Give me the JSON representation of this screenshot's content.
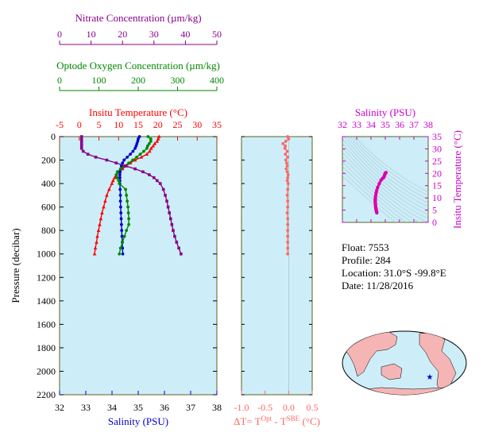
{
  "colors": {
    "temperature": "#ff0000",
    "salinity": "#0000cc",
    "oxygen": "#008800",
    "nitrate": "#880088",
    "delta_t": "#ff6666",
    "ts_axis": "#cc00cc",
    "panel_bg": "#cdeef8",
    "frame": "#606020"
  },
  "chart_data": [
    {
      "type": "line",
      "name": "profile-panel",
      "ylabel": "Pressure (decibar)",
      "ylim": [
        2200,
        0
      ],
      "yticks": [
        0,
        200,
        400,
        600,
        800,
        1000,
        1200,
        1400,
        1600,
        1800,
        2000,
        2200
      ],
      "axes": {
        "nitrate": {
          "label": "Nitrate Concentration (µm/kg)",
          "lim": [
            0,
            50
          ],
          "ticks": [
            0,
            10,
            20,
            30,
            40,
            50
          ]
        },
        "oxygen": {
          "label": "Optode Oxygen Concentration (µm/kg)",
          "lim": [
            0,
            400
          ],
          "ticks": [
            0,
            100,
            200,
            300,
            400
          ]
        },
        "temperature": {
          "label": "Insitu Temperature (°C)",
          "lim": [
            -5,
            35
          ],
          "ticks": [
            -5,
            0,
            5,
            10,
            15,
            20,
            25,
            30,
            35
          ]
        },
        "salinity": {
          "label": "Salinity (PSU)",
          "lim": [
            32,
            38
          ],
          "ticks": [
            32,
            33,
            34,
            35,
            36,
            37,
            38
          ]
        }
      },
      "series": [
        {
          "key": "temperature",
          "p": [
            0,
            20,
            40,
            60,
            80,
            100,
            125,
            150,
            175,
            200,
            225,
            250,
            275,
            300,
            325,
            350,
            375,
            400,
            450,
            500,
            550,
            600,
            650,
            700,
            750,
            800,
            850,
            900,
            950,
            1000
          ],
          "v": [
            20.3,
            20.1,
            19.8,
            19.2,
            18.8,
            18.3,
            17.9,
            17.2,
            15.8,
            14.2,
            13.0,
            12.0,
            11.0,
            10.2,
            9.5,
            9.0,
            8.6,
            8.3,
            7.6,
            7.0,
            6.6,
            6.2,
            5.8,
            5.5,
            5.2,
            4.9,
            4.6,
            4.4,
            4.1,
            3.9
          ]
        },
        {
          "key": "salinity",
          "p": [
            0,
            20,
            40,
            60,
            80,
            100,
            125,
            150,
            175,
            200,
            225,
            250,
            275,
            300,
            325,
            350,
            375,
            400,
            450,
            500,
            550,
            600,
            650,
            700,
            750,
            800,
            850,
            900,
            950,
            1000
          ],
          "v": [
            35.05,
            35.0,
            34.98,
            34.95,
            34.92,
            34.88,
            34.8,
            34.7,
            34.58,
            34.46,
            34.4,
            34.36,
            34.33,
            34.31,
            34.3,
            34.3,
            34.3,
            34.3,
            34.31,
            34.32,
            34.32,
            34.33,
            34.34,
            34.35,
            34.36,
            34.37,
            34.38,
            34.39,
            34.4,
            34.41
          ]
        },
        {
          "key": "oxygen",
          "p": [
            0,
            20,
            40,
            60,
            80,
            100,
            125,
            150,
            175,
            200,
            225,
            250,
            275,
            300,
            325,
            350,
            375,
            400,
            450,
            500,
            550,
            600,
            650,
            700,
            750,
            800,
            850,
            900,
            950,
            1000
          ],
          "v": [
            225,
            232,
            232,
            228,
            224,
            222,
            214,
            205,
            196,
            186,
            176,
            165,
            155,
            147,
            144,
            146,
            150,
            152,
            168,
            170,
            172,
            174,
            175,
            176,
            176,
            170,
            165,
            160,
            155,
            152
          ]
        },
        {
          "key": "nitrate",
          "p": [
            0,
            20,
            40,
            60,
            80,
            100,
            125,
            150,
            175,
            200,
            225,
            250,
            275,
            300,
            325,
            350,
            375,
            400,
            450,
            500,
            550,
            600,
            650,
            700,
            750,
            800,
            850,
            900,
            950,
            1000
          ],
          "v": [
            7.0,
            7.0,
            7.0,
            7.0,
            7.0,
            7.0,
            7.5,
            9.0,
            11.5,
            15.0,
            18.0,
            21.0,
            24.0,
            26.5,
            28.5,
            30.0,
            31.0,
            32.0,
            33.0,
            33.6,
            34.1,
            34.5,
            34.9,
            35.3,
            35.7,
            36.1,
            36.6,
            37.2,
            37.9,
            38.6
          ]
        }
      ]
    },
    {
      "type": "line",
      "name": "delta-t-panel",
      "xlabel": "ΔT= T^Opt - T^SBE (°C)",
      "xlim": [
        -1.0,
        0.5
      ],
      "xticks": [
        -1.0,
        -0.5,
        0.0,
        0.5
      ],
      "ylim": [
        2200,
        0
      ],
      "series": [
        {
          "key": "delta_t",
          "p": [
            0,
            20,
            40,
            60,
            80,
            100,
            125,
            150,
            175,
            200,
            225,
            250,
            275,
            300,
            325,
            350,
            375,
            400,
            450,
            500,
            550,
            600,
            650,
            700,
            750,
            800,
            850,
            900,
            950,
            1000
          ],
          "v": [
            -0.02,
            0.0,
            -0.06,
            -0.12,
            -0.07,
            -0.08,
            -0.03,
            -0.07,
            -0.02,
            -0.06,
            -0.04,
            -0.03,
            -0.05,
            -0.03,
            -0.01,
            -0.02,
            -0.03,
            -0.01,
            -0.02,
            -0.03,
            -0.02,
            -0.02,
            -0.03,
            -0.02,
            -0.02,
            -0.02,
            -0.02,
            -0.02,
            -0.02,
            -0.02
          ]
        }
      ]
    },
    {
      "type": "scatter",
      "name": "ts-panel",
      "title": "Salinity (PSU)",
      "ylabel": "Insitu Temperature (°C)",
      "xlim": [
        32,
        38
      ],
      "ylim": [
        0,
        35
      ],
      "xticks": [
        32,
        33,
        34,
        35,
        36,
        37,
        38
      ],
      "yticks": [
        0,
        5,
        10,
        15,
        20,
        25,
        30,
        35
      ],
      "points": [
        {
          "s": 35.05,
          "t": 20.3
        },
        {
          "s": 35.0,
          "t": 20.1
        },
        {
          "s": 34.98,
          "t": 19.8
        },
        {
          "s": 34.95,
          "t": 19.2
        },
        {
          "s": 34.92,
          "t": 18.8
        },
        {
          "s": 34.88,
          "t": 18.3
        },
        {
          "s": 34.8,
          "t": 17.9
        },
        {
          "s": 34.7,
          "t": 17.2
        },
        {
          "s": 34.58,
          "t": 15.8
        },
        {
          "s": 34.46,
          "t": 14.2
        },
        {
          "s": 34.4,
          "t": 13.0
        },
        {
          "s": 34.36,
          "t": 12.0
        },
        {
          "s": 34.33,
          "t": 11.0
        },
        {
          "s": 34.31,
          "t": 10.2
        },
        {
          "s": 34.3,
          "t": 9.5
        },
        {
          "s": 34.3,
          "t": 9.0
        },
        {
          "s": 34.3,
          "t": 8.6
        },
        {
          "s": 34.3,
          "t": 8.3
        },
        {
          "s": 34.31,
          "t": 7.6
        },
        {
          "s": 34.32,
          "t": 7.0
        },
        {
          "s": 34.32,
          "t": 6.6
        },
        {
          "s": 34.33,
          "t": 6.2
        },
        {
          "s": 34.34,
          "t": 5.8
        },
        {
          "s": 34.35,
          "t": 5.5
        },
        {
          "s": 34.36,
          "t": 5.2
        },
        {
          "s": 34.37,
          "t": 4.9
        },
        {
          "s": 34.38,
          "t": 4.6
        },
        {
          "s": 34.39,
          "t": 4.4
        },
        {
          "s": 34.4,
          "t": 4.1
        },
        {
          "s": 34.41,
          "t": 3.9
        }
      ]
    }
  ],
  "info": {
    "float": "Float:  7553",
    "profile": "Profile:  284",
    "location": "Location:  31.0°S  -99.8°E",
    "date": "Date:  11/28/2016"
  },
  "map": {
    "marker": "float-location-star"
  }
}
